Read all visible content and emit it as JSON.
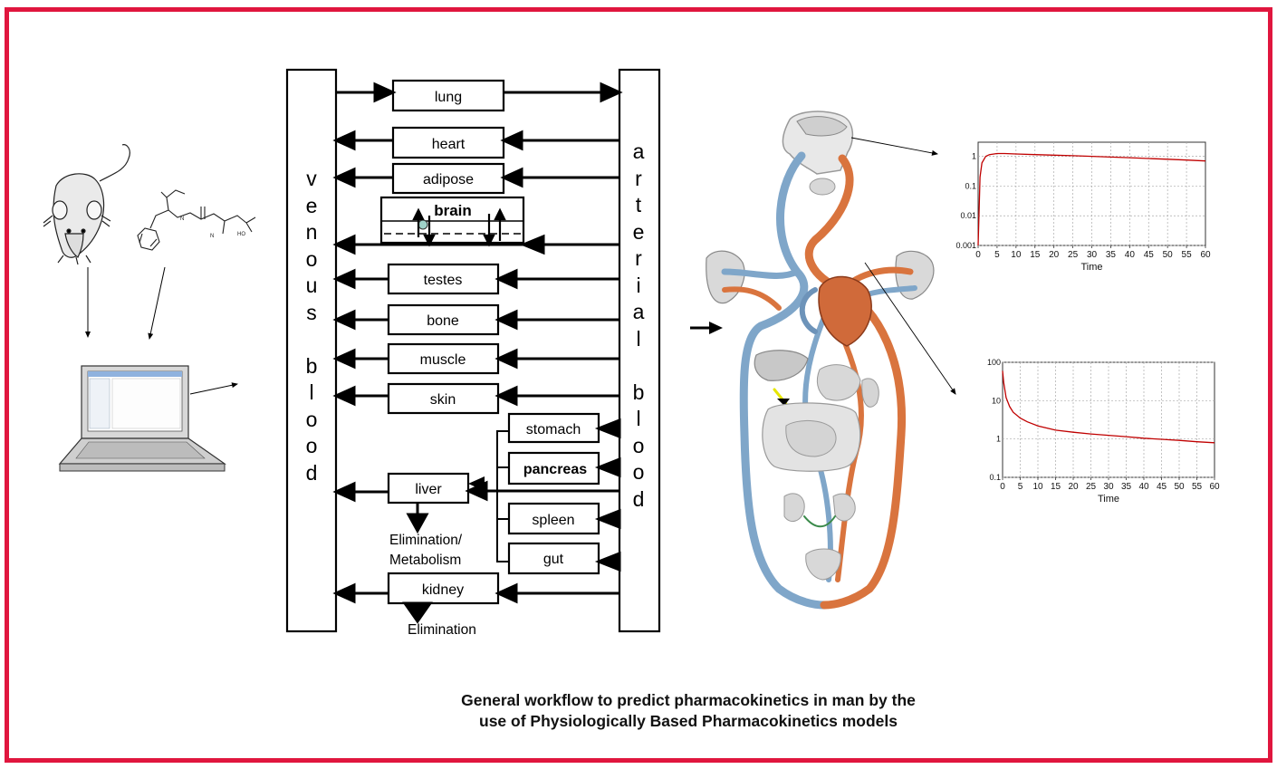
{
  "diagram": {
    "venous_label": "venous blood",
    "venous_chars": [
      "v",
      "e",
      "n",
      "o",
      "u",
      "s",
      "",
      "b",
      "l",
      "o",
      "o",
      "d"
    ],
    "arterial_label": "arterial blood",
    "arterial_chars": [
      "a",
      "r",
      "t",
      "e",
      "r",
      "i",
      "a",
      "l",
      "",
      "b",
      "l",
      "o",
      "o",
      "d"
    ],
    "organs": {
      "lung": "lung",
      "heart": "heart",
      "adipose": "adipose",
      "brain": "brain",
      "testes": "testes",
      "bone": "bone",
      "muscle": "muscle",
      "skin": "skin",
      "stomach": "stomach",
      "pancreas": "pancreas",
      "liver": "liver",
      "spleen": "spleen",
      "gut": "gut",
      "kidney": "kidney"
    },
    "elimination_metabolism_1": "Elimination/",
    "elimination_metabolism_2": "Metabolism",
    "elimination": "Elimination"
  },
  "caption": {
    "line1": "General workflow to predict pharmacokinetics in man by the",
    "line2": "use of Physiologically Based Pharmacokinetics models"
  },
  "colors": {
    "frame": "#e0163e",
    "curve": "#c00000",
    "vein": "#7fa6c9",
    "artery": "#d9743e"
  },
  "chart_data": [
    {
      "type": "line",
      "xlabel": "Time",
      "x_ticks": [
        "0",
        "5",
        "10",
        "15",
        "20",
        "25",
        "30",
        "35",
        "40",
        "45",
        "50",
        "55",
        "60"
      ],
      "y_ticks": [
        "1",
        "0.1",
        "0.01",
        "0.001"
      ],
      "yscale": "log",
      "xlim": [
        0,
        60
      ],
      "ylim": [
        0.001,
        3
      ],
      "series": [
        {
          "x": [
            0,
            0.5,
            1,
            2,
            3,
            5,
            7,
            10,
            15,
            20,
            25,
            30,
            35,
            40,
            45,
            50,
            55,
            60
          ],
          "y": [
            0.001,
            0.2,
            0.6,
            1.0,
            1.15,
            1.25,
            1.25,
            1.2,
            1.15,
            1.1,
            1.05,
            1.0,
            0.95,
            0.9,
            0.85,
            0.8,
            0.75,
            0.7
          ]
        }
      ]
    },
    {
      "type": "line",
      "xlabel": "Time",
      "x_ticks": [
        "0",
        "5",
        "10",
        "15",
        "20",
        "25",
        "30",
        "35",
        "40",
        "45",
        "50",
        "55",
        "60"
      ],
      "y_ticks": [
        "100",
        "10",
        "1",
        "0.1"
      ],
      "yscale": "log",
      "xlim": [
        0,
        60
      ],
      "ylim": [
        0.1,
        100
      ],
      "series": [
        {
          "x": [
            0,
            0.3,
            1,
            2,
            3,
            5,
            7,
            10,
            15,
            20,
            25,
            30,
            35,
            40,
            45,
            50,
            55,
            60
          ],
          "y": [
            60,
            30,
            12,
            7,
            5,
            3.5,
            2.8,
            2.2,
            1.7,
            1.5,
            1.35,
            1.25,
            1.15,
            1.05,
            0.98,
            0.92,
            0.85,
            0.8
          ]
        }
      ]
    }
  ]
}
